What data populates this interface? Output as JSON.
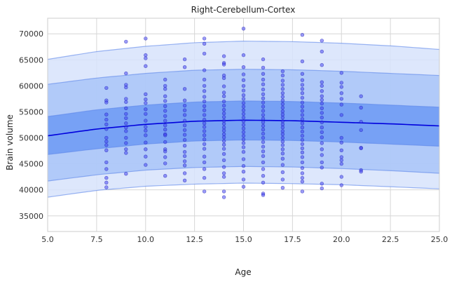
{
  "chart_data": {
    "type": "scatter",
    "title": "Right-Cerebellum-Cortex",
    "xlabel": "Age",
    "ylabel": "Brain volume",
    "xlim": [
      5.0,
      25.0
    ],
    "ylim": [
      32000,
      73000
    ],
    "xticks": [
      5.0,
      7.5,
      10.0,
      12.5,
      15.0,
      17.5,
      20.0,
      22.5,
      25.0
    ],
    "xtick_labels": [
      "5.0",
      "7.5",
      "10.0",
      "12.5",
      "15.0",
      "17.5",
      "20.0",
      "22.5",
      "25.0"
    ],
    "yticks": [
      35000,
      40000,
      45000,
      50000,
      55000,
      60000,
      65000,
      70000
    ],
    "ytick_labels": [
      "35000",
      "40000",
      "45000",
      "50000",
      "55000",
      "60000",
      "65000",
      "70000"
    ],
    "grid": true,
    "colors": {
      "points": "#3a3af0",
      "median_line": "#0000dd",
      "band_inner": "#6d9af5",
      "band_middle": "#a9c4f8",
      "band_outer": "#d7e3fb"
    },
    "median_curve": {
      "x": [
        5,
        7.5,
        10,
        12.5,
        15,
        17.5,
        20,
        22.5,
        25
      ],
      "y": [
        50400,
        51700,
        52600,
        53200,
        53400,
        53300,
        53000,
        52700,
        52300
      ]
    },
    "percentile_bands": [
      {
        "lower": [
          38600,
          39900,
          40700,
          41100,
          41300,
          41200,
          41000,
          40600,
          40200
        ],
        "upper": [
          65100,
          66600,
          67600,
          68300,
          68600,
          68500,
          68200,
          67700,
          67000
        ]
      },
      {
        "lower": [
          41700,
          42900,
          43800,
          44300,
          44500,
          44400,
          44100,
          43700,
          43200
        ],
        "upper": [
          60300,
          61500,
          62400,
          63000,
          63200,
          63100,
          62800,
          62400,
          62000
        ]
      },
      {
        "lower": [
          46800,
          47900,
          48800,
          49400,
          49600,
          49500,
          49200,
          48800,
          48400
        ],
        "upper": [
          54100,
          55400,
          56300,
          56900,
          57100,
          57000,
          56700,
          56300,
          55900
        ]
      }
    ],
    "points": [
      [
        8,
        59600
      ],
      [
        8,
        57200
      ],
      [
        8,
        56800
      ],
      [
        8,
        54500
      ],
      [
        8,
        53500
      ],
      [
        8,
        52600
      ],
      [
        8,
        51700
      ],
      [
        8,
        50000
      ],
      [
        8,
        49300
      ],
      [
        8,
        48600
      ],
      [
        8,
        47600
      ],
      [
        8,
        45300
      ],
      [
        8,
        44000
      ],
      [
        8,
        42300
      ],
      [
        8,
        41400
      ],
      [
        8,
        40500
      ],
      [
        9,
        68500
      ],
      [
        9,
        62400
      ],
      [
        9,
        60200
      ],
      [
        9,
        59700
      ],
      [
        9,
        57500
      ],
      [
        9,
        56900
      ],
      [
        9,
        55700
      ],
      [
        9,
        54600
      ],
      [
        9,
        53800
      ],
      [
        9,
        52800
      ],
      [
        9,
        52000
      ],
      [
        9,
        51300
      ],
      [
        9,
        50000
      ],
      [
        9,
        49000
      ],
      [
        9,
        47800
      ],
      [
        9,
        47100
      ],
      [
        9,
        43100
      ],
      [
        10,
        69100
      ],
      [
        10,
        65900
      ],
      [
        10,
        65300
      ],
      [
        10,
        63800
      ],
      [
        10,
        58400
      ],
      [
        10,
        57400
      ],
      [
        10,
        56700
      ],
      [
        10,
        55500
      ],
      [
        10,
        54600
      ],
      [
        10,
        53300
      ],
      [
        10,
        52100
      ],
      [
        10,
        51400
      ],
      [
        10,
        50500
      ],
      [
        10,
        49100
      ],
      [
        10,
        47800
      ],
      [
        10,
        46400
      ],
      [
        10,
        44800
      ],
      [
        11,
        61200
      ],
      [
        11,
        60000
      ],
      [
        11,
        59400
      ],
      [
        11,
        58000
      ],
      [
        11,
        57100
      ],
      [
        11,
        56100
      ],
      [
        11,
        55200
      ],
      [
        11,
        54200
      ],
      [
        11,
        53300
      ],
      [
        11,
        52400
      ],
      [
        11,
        51600
      ],
      [
        11,
        50700
      ],
      [
        11,
        50500
      ],
      [
        11,
        49200
      ],
      [
        11,
        47800
      ],
      [
        11,
        47400
      ],
      [
        11,
        46300
      ],
      [
        11,
        45100
      ],
      [
        11,
        42700
      ],
      [
        12,
        65100
      ],
      [
        12,
        63600
      ],
      [
        12,
        59400
      ],
      [
        12,
        57200
      ],
      [
        12,
        56200
      ],
      [
        12,
        55300
      ],
      [
        12,
        54400
      ],
      [
        12,
        53300
      ],
      [
        12,
        52400
      ],
      [
        12,
        51500
      ],
      [
        12,
        50600
      ],
      [
        12,
        49600
      ],
      [
        12,
        48500
      ],
      [
        12,
        47300
      ],
      [
        12,
        46500
      ],
      [
        12,
        45500
      ],
      [
        12,
        44700
      ],
      [
        12,
        43200
      ],
      [
        12,
        41800
      ],
      [
        13,
        69100
      ],
      [
        13,
        68100
      ],
      [
        13,
        66200
      ],
      [
        13,
        63000
      ],
      [
        13,
        61200
      ],
      [
        13,
        60000
      ],
      [
        13,
        59000
      ],
      [
        13,
        57900
      ],
      [
        13,
        57000
      ],
      [
        13,
        56100
      ],
      [
        13,
        55300
      ],
      [
        13,
        54400
      ],
      [
        13,
        53500
      ],
      [
        13,
        52800
      ],
      [
        13,
        52100
      ],
      [
        13,
        51300
      ],
      [
        13,
        50500
      ],
      [
        13,
        49700
      ],
      [
        13,
        48800
      ],
      [
        13,
        47900
      ],
      [
        13,
        46400
      ],
      [
        13,
        45300
      ],
      [
        13,
        44000
      ],
      [
        13,
        42300
      ],
      [
        13,
        39700
      ],
      [
        14,
        65700
      ],
      [
        14,
        64400
      ],
      [
        14,
        64100
      ],
      [
        14,
        62000
      ],
      [
        14,
        61500
      ],
      [
        14,
        59900
      ],
      [
        14,
        58700
      ],
      [
        14,
        58000
      ],
      [
        14,
        57000
      ],
      [
        14,
        56200
      ],
      [
        14,
        55400
      ],
      [
        14,
        54700
      ],
      [
        14,
        54000
      ],
      [
        14,
        53300
      ],
      [
        14,
        52700
      ],
      [
        14,
        52000
      ],
      [
        14,
        51400
      ],
      [
        14,
        50700
      ],
      [
        14,
        50100
      ],
      [
        14,
        49400
      ],
      [
        14,
        48700
      ],
      [
        14,
        47900
      ],
      [
        14,
        46900
      ],
      [
        14,
        45700
      ],
      [
        14,
        44400
      ],
      [
        14,
        43200
      ],
      [
        14,
        42500
      ],
      [
        14,
        39700
      ],
      [
        14,
        38600
      ],
      [
        15,
        71000
      ],
      [
        15,
        65900
      ],
      [
        15,
        63600
      ],
      [
        15,
        62200
      ],
      [
        15,
        61100
      ],
      [
        15,
        60000
      ],
      [
        15,
        59100
      ],
      [
        15,
        58200
      ],
      [
        15,
        57500
      ],
      [
        15,
        56700
      ],
      [
        15,
        56000
      ],
      [
        15,
        55300
      ],
      [
        15,
        54600
      ],
      [
        15,
        53900
      ],
      [
        15,
        53200
      ],
      [
        15,
        52500
      ],
      [
        15,
        51800
      ],
      [
        15,
        51100
      ],
      [
        15,
        50400
      ],
      [
        15,
        49700
      ],
      [
        15,
        49000
      ],
      [
        15,
        48200
      ],
      [
        15,
        47300
      ],
      [
        15,
        45900
      ],
      [
        15,
        44600
      ],
      [
        15,
        43500
      ],
      [
        15,
        42000
      ],
      [
        15,
        40600
      ],
      [
        16,
        65100
      ],
      [
        16,
        63500
      ],
      [
        16,
        62300
      ],
      [
        16,
        61200
      ],
      [
        16,
        60300
      ],
      [
        16,
        59300
      ],
      [
        16,
        58400
      ],
      [
        16,
        57600
      ],
      [
        16,
        56800
      ],
      [
        16,
        56000
      ],
      [
        16,
        55200
      ],
      [
        16,
        54400
      ],
      [
        16,
        53700
      ],
      [
        16,
        53000
      ],
      [
        16,
        52300
      ],
      [
        16,
        51600
      ],
      [
        16,
        50800
      ],
      [
        16,
        50000
      ],
      [
        16,
        49200
      ],
      [
        16,
        48300
      ],
      [
        16,
        47400
      ],
      [
        16,
        46500
      ],
      [
        16,
        45300
      ],
      [
        16,
        44000
      ],
      [
        16,
        42700
      ],
      [
        16,
        41400
      ],
      [
        16,
        39300
      ],
      [
        16,
        39000
      ],
      [
        17,
        62800
      ],
      [
        17,
        62000
      ],
      [
        17,
        61000
      ],
      [
        17,
        60200
      ],
      [
        17,
        59400
      ],
      [
        17,
        58600
      ],
      [
        17,
        57900
      ],
      [
        17,
        57200
      ],
      [
        17,
        56500
      ],
      [
        17,
        55800
      ],
      [
        17,
        55100
      ],
      [
        17,
        54500
      ],
      [
        17,
        53900
      ],
      [
        17,
        53200
      ],
      [
        17,
        52600
      ],
      [
        17,
        52000
      ],
      [
        17,
        51300
      ],
      [
        17,
        50700
      ],
      [
        17,
        50000
      ],
      [
        17,
        49300
      ],
      [
        17,
        48600
      ],
      [
        17,
        47800
      ],
      [
        17,
        47000
      ],
      [
        17,
        46000
      ],
      [
        17,
        44800
      ],
      [
        17,
        43400
      ],
      [
        17,
        42000
      ],
      [
        17,
        40400
      ],
      [
        18,
        69800
      ],
      [
        18,
        64700
      ],
      [
        18,
        62300
      ],
      [
        18,
        61100
      ],
      [
        18,
        60200
      ],
      [
        18,
        59400
      ],
      [
        18,
        58600
      ],
      [
        18,
        57700
      ],
      [
        18,
        56800
      ],
      [
        18,
        56000
      ],
      [
        18,
        55200
      ],
      [
        18,
        54400
      ],
      [
        18,
        53600
      ],
      [
        18,
        52800
      ],
      [
        18,
        52000
      ],
      [
        18,
        51200
      ],
      [
        18,
        50400
      ],
      [
        18,
        49600
      ],
      [
        18,
        48800
      ],
      [
        18,
        48000
      ],
      [
        18,
        47200
      ],
      [
        18,
        46300
      ],
      [
        18,
        45300
      ],
      [
        18,
        44200
      ],
      [
        18,
        43200
      ],
      [
        18,
        42300
      ],
      [
        18,
        41600
      ],
      [
        18,
        39700
      ],
      [
        19,
        68700
      ],
      [
        19,
        66600
      ],
      [
        19,
        64000
      ],
      [
        19,
        60700
      ],
      [
        19,
        60000
      ],
      [
        19,
        59000
      ],
      [
        19,
        58000
      ],
      [
        19,
        57300
      ],
      [
        19,
        56600
      ],
      [
        19,
        55700
      ],
      [
        19,
        54800
      ],
      [
        19,
        53900
      ],
      [
        19,
        53000
      ],
      [
        19,
        52000
      ],
      [
        19,
        51100
      ],
      [
        19,
        50100
      ],
      [
        19,
        49000
      ],
      [
        19,
        47800
      ],
      [
        19,
        46700
      ],
      [
        19,
        45300
      ],
      [
        19,
        44300
      ],
      [
        19,
        41200
      ],
      [
        19,
        40300
      ],
      [
        20,
        62500
      ],
      [
        20,
        60600
      ],
      [
        20,
        59800
      ],
      [
        20,
        58600
      ],
      [
        20,
        57500
      ],
      [
        20,
        56400
      ],
      [
        20,
        54400
      ],
      [
        20,
        50000
      ],
      [
        20,
        49100
      ],
      [
        20,
        47600
      ],
      [
        20,
        46300
      ],
      [
        20,
        45700
      ],
      [
        20,
        45000
      ],
      [
        20,
        42500
      ],
      [
        20,
        40900
      ],
      [
        21,
        58000
      ],
      [
        21,
        55800
      ],
      [
        21,
        53100
      ],
      [
        21,
        51500
      ],
      [
        21,
        48100
      ],
      [
        21,
        48000
      ],
      [
        21,
        43800
      ],
      [
        21,
        43500
      ]
    ]
  }
}
